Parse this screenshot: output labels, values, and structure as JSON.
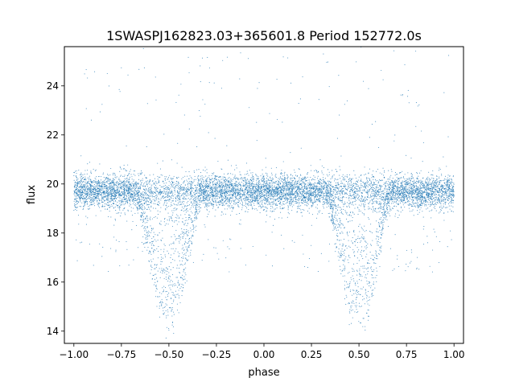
{
  "chart_data": {
    "type": "scatter",
    "title": "1SWASPJ162823.03+365601.8 Period 152772.0s",
    "xlabel": "phase",
    "ylabel": "flux",
    "xlim": [
      -1.05,
      1.05
    ],
    "ylim": [
      13.5,
      25.6
    ],
    "xticks": [
      -1.0,
      -0.75,
      -0.5,
      -0.25,
      0.0,
      0.25,
      0.5,
      0.75,
      1.0
    ],
    "xtick_labels": [
      "−1.00",
      "−0.75",
      "−0.50",
      "−0.25",
      "0.00",
      "0.25",
      "0.50",
      "0.75",
      "1.00"
    ],
    "yticks": [
      14,
      16,
      18,
      20,
      22,
      24
    ],
    "ytick_labels": [
      "14",
      "16",
      "18",
      "20",
      "22",
      "24"
    ],
    "grid": false,
    "marker_color": "#1f77b4",
    "series": [
      {
        "description_points": [
          {
            "x": -1.0,
            "y": 19.7
          },
          {
            "x": -0.75,
            "y": 19.7
          },
          {
            "x": -0.65,
            "y": 18.5
          },
          {
            "x": -0.6,
            "y": 17.0
          },
          {
            "x": -0.55,
            "y": 15.5
          },
          {
            "x": -0.5,
            "y": 15.0
          },
          {
            "x": -0.45,
            "y": 15.3
          },
          {
            "x": -0.4,
            "y": 16.5
          },
          {
            "x": -0.35,
            "y": 18.5
          },
          {
            "x": -0.25,
            "y": 19.7
          },
          {
            "x": 0.0,
            "y": 19.7
          },
          {
            "x": 0.25,
            "y": 19.7
          },
          {
            "x": 0.35,
            "y": 18.5
          },
          {
            "x": 0.4,
            "y": 17.0
          },
          {
            "x": 0.45,
            "y": 15.5
          },
          {
            "x": 0.5,
            "y": 15.0
          },
          {
            "x": 0.55,
            "y": 15.3
          },
          {
            "x": 0.6,
            "y": 16.5
          },
          {
            "x": 0.65,
            "y": 18.5
          },
          {
            "x": 0.75,
            "y": 19.7
          },
          {
            "x": 1.0,
            "y": 19.7
          }
        ],
        "baseline_flux": 19.7,
        "eclipse_min_flux": 14.5,
        "eclipse_centers": [
          -0.5,
          0.5
        ],
        "x_range": [
          -1.0,
          1.0
        ]
      }
    ]
  }
}
